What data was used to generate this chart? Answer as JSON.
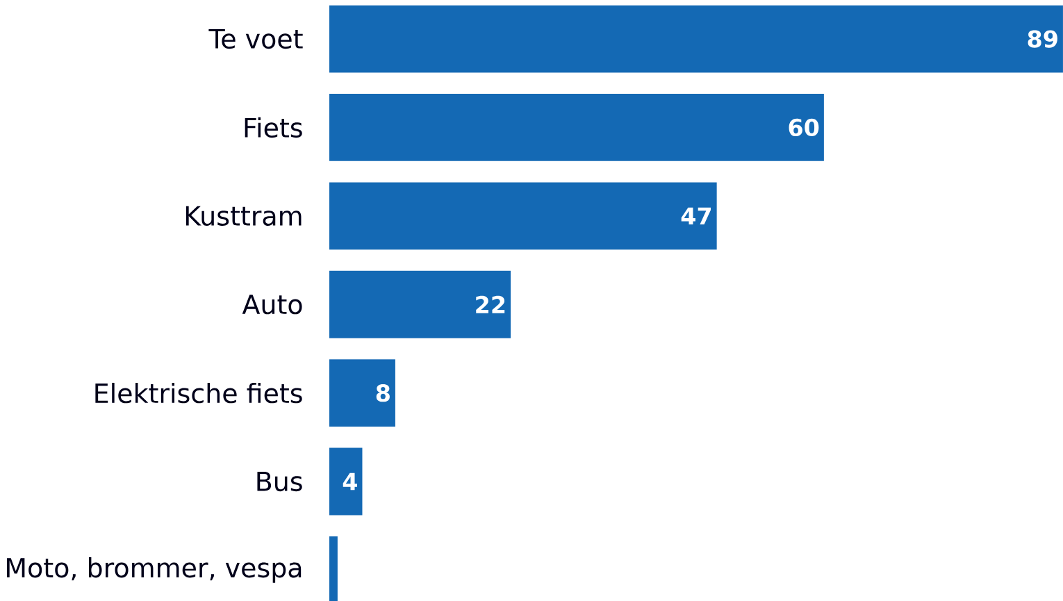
{
  "chart_data": {
    "type": "bar",
    "orientation": "horizontal",
    "categories": [
      "Te voet",
      "Fiets",
      "Kusttram",
      "Auto",
      "Elektrische fiets",
      "Bus",
      "Moto, brommer, vespa"
    ],
    "values": [
      89,
      60,
      47,
      22,
      8,
      4,
      1
    ],
    "value_labels": [
      "89",
      "60",
      "47",
      "22",
      "8",
      "4",
      null
    ],
    "color": "#1469b4"
  }
}
